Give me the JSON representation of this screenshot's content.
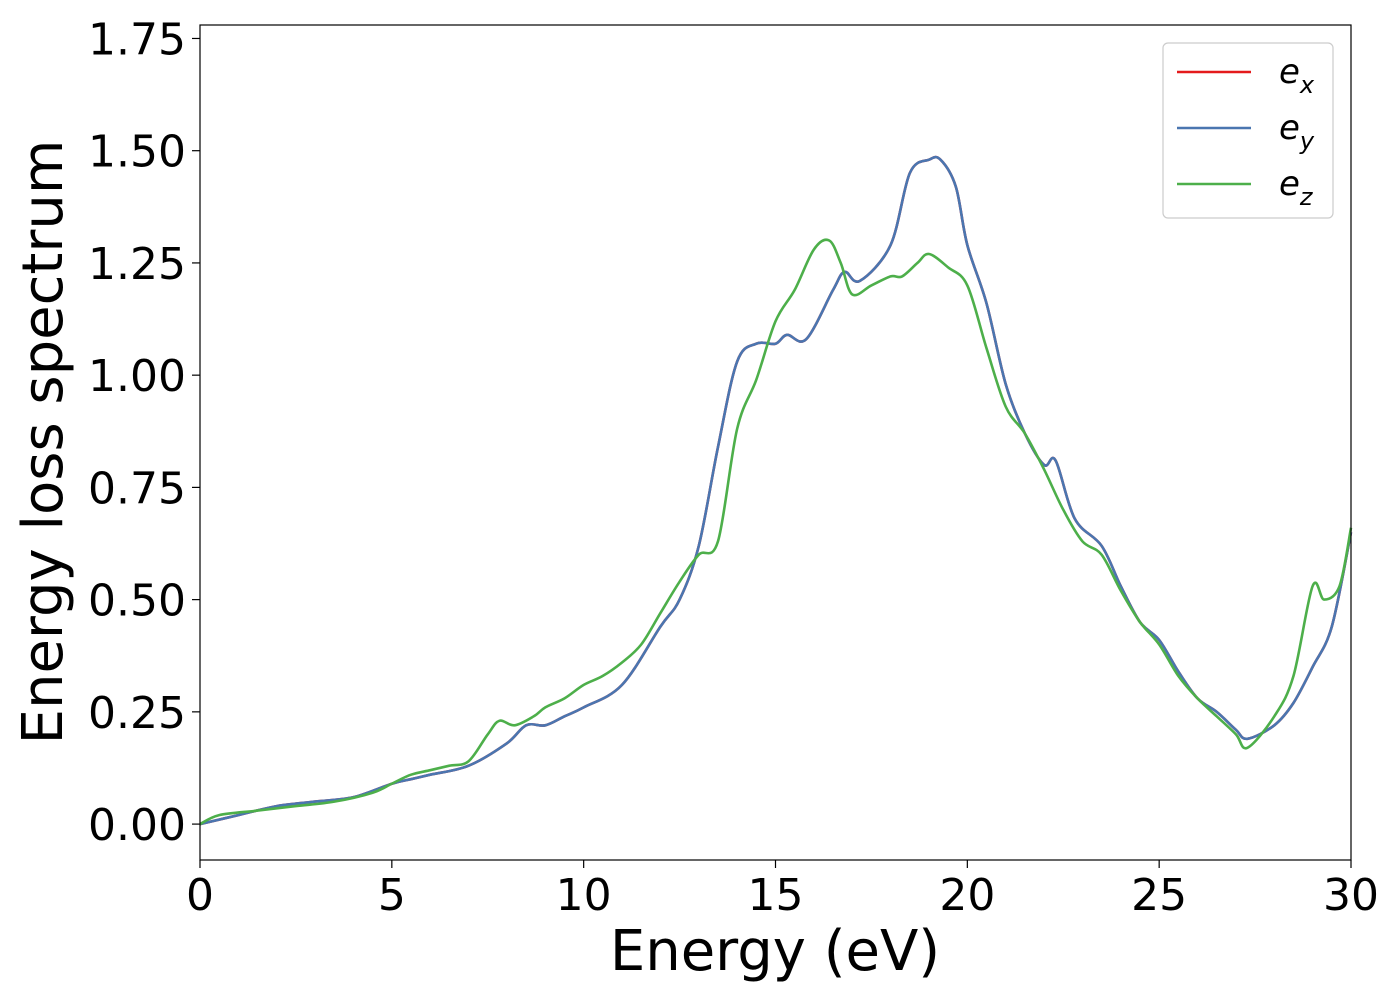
{
  "chart_data": {
    "type": "line",
    "xlabel": "Energy (eV)",
    "ylabel": "Energy loss spectrum",
    "xlim": [
      0,
      30
    ],
    "ylim": [
      -0.08,
      1.78
    ],
    "xticks": [
      0,
      5,
      10,
      15,
      20,
      25,
      30
    ],
    "xtick_labels": [
      "0",
      "5",
      "10",
      "15",
      "20",
      "25",
      "30"
    ],
    "yticks": [
      0.0,
      0.25,
      0.5,
      0.75,
      1.0,
      1.25,
      1.5,
      1.75
    ],
    "ytick_labels": [
      "0.00",
      "0.25",
      "0.50",
      "0.75",
      "1.00",
      "1.25",
      "1.50",
      "1.75"
    ],
    "grid": false,
    "legend_position": "top-right",
    "series": [
      {
        "name": "e_x",
        "label_base": "e",
        "label_sub": "x",
        "color": "#e41a1c",
        "x": [
          0,
          1,
          2,
          3,
          4,
          5,
          5.5,
          6,
          7,
          8,
          8.5,
          9,
          9.5,
          10,
          11,
          12,
          12.5,
          13,
          13.5,
          14,
          14.5,
          15,
          15.3,
          15.8,
          16.5,
          16.8,
          17.2,
          18,
          18.5,
          19,
          19.3,
          19.7,
          20,
          20.5,
          21,
          21.5,
          22,
          22.3,
          22.8,
          23.5,
          24,
          24.5,
          25,
          25.5,
          26,
          26.5,
          27,
          27.3,
          28,
          28.5,
          29,
          29.5,
          30
        ],
        "y": [
          0.0,
          0.02,
          0.04,
          0.05,
          0.06,
          0.09,
          0.1,
          0.11,
          0.13,
          0.18,
          0.22,
          0.22,
          0.24,
          0.26,
          0.31,
          0.44,
          0.5,
          0.62,
          0.84,
          1.03,
          1.07,
          1.07,
          1.09,
          1.08,
          1.19,
          1.23,
          1.21,
          1.29,
          1.45,
          1.48,
          1.48,
          1.42,
          1.29,
          1.16,
          0.98,
          0.87,
          0.8,
          0.81,
          0.68,
          0.62,
          0.53,
          0.45,
          0.41,
          0.34,
          0.28,
          0.25,
          0.21,
          0.19,
          0.22,
          0.27,
          0.35,
          0.44,
          0.65
        ]
      },
      {
        "name": "e_y",
        "label_base": "e",
        "label_sub": "y",
        "color": "#4a76b0",
        "x": [
          0,
          1,
          2,
          3,
          4,
          5,
          5.5,
          6,
          7,
          8,
          8.5,
          9,
          9.5,
          10,
          11,
          12,
          12.5,
          13,
          13.5,
          14,
          14.5,
          15,
          15.3,
          15.8,
          16.5,
          16.8,
          17.2,
          18,
          18.5,
          19,
          19.3,
          19.7,
          20,
          20.5,
          21,
          21.5,
          22,
          22.3,
          22.8,
          23.5,
          24,
          24.5,
          25,
          25.5,
          26,
          26.5,
          27,
          27.3,
          28,
          28.5,
          29,
          29.5,
          30
        ],
        "y": [
          0.0,
          0.02,
          0.04,
          0.05,
          0.06,
          0.09,
          0.1,
          0.11,
          0.13,
          0.18,
          0.22,
          0.22,
          0.24,
          0.26,
          0.31,
          0.44,
          0.5,
          0.62,
          0.84,
          1.03,
          1.07,
          1.07,
          1.09,
          1.08,
          1.19,
          1.23,
          1.21,
          1.29,
          1.45,
          1.48,
          1.48,
          1.42,
          1.29,
          1.16,
          0.98,
          0.87,
          0.8,
          0.81,
          0.68,
          0.62,
          0.53,
          0.45,
          0.41,
          0.34,
          0.28,
          0.25,
          0.21,
          0.19,
          0.22,
          0.27,
          0.35,
          0.44,
          0.65
        ]
      },
      {
        "name": "e_z",
        "label_base": "e",
        "label_sub": "z",
        "color": "#4daf4a",
        "x": [
          0,
          0.5,
          1.5,
          2.5,
          3.5,
          4.5,
          5,
          5.5,
          6,
          6.5,
          7,
          7.5,
          7.8,
          8.2,
          8.7,
          9,
          9.5,
          10,
          10.5,
          11,
          11.5,
          12,
          12.5,
          13,
          13.5,
          14,
          14.5,
          15,
          15.5,
          16,
          16.4,
          16.7,
          17,
          17.5,
          18,
          18.3,
          18.7,
          19,
          19.5,
          20,
          20.5,
          21,
          21.5,
          22,
          22.5,
          23,
          23.5,
          24,
          24.5,
          25,
          25.5,
          26,
          26.5,
          27,
          27.3,
          28,
          28.5,
          29,
          29.3,
          29.7,
          30
        ],
        "y": [
          0.0,
          0.02,
          0.03,
          0.04,
          0.05,
          0.07,
          0.09,
          0.11,
          0.12,
          0.13,
          0.14,
          0.2,
          0.23,
          0.22,
          0.24,
          0.26,
          0.28,
          0.31,
          0.33,
          0.36,
          0.4,
          0.47,
          0.54,
          0.6,
          0.63,
          0.88,
          0.99,
          1.12,
          1.19,
          1.28,
          1.3,
          1.25,
          1.18,
          1.2,
          1.22,
          1.22,
          1.25,
          1.27,
          1.24,
          1.2,
          1.06,
          0.93,
          0.87,
          0.79,
          0.7,
          0.63,
          0.6,
          0.52,
          0.45,
          0.4,
          0.33,
          0.28,
          0.24,
          0.2,
          0.17,
          0.24,
          0.33,
          0.53,
          0.5,
          0.53,
          0.66
        ]
      }
    ]
  }
}
